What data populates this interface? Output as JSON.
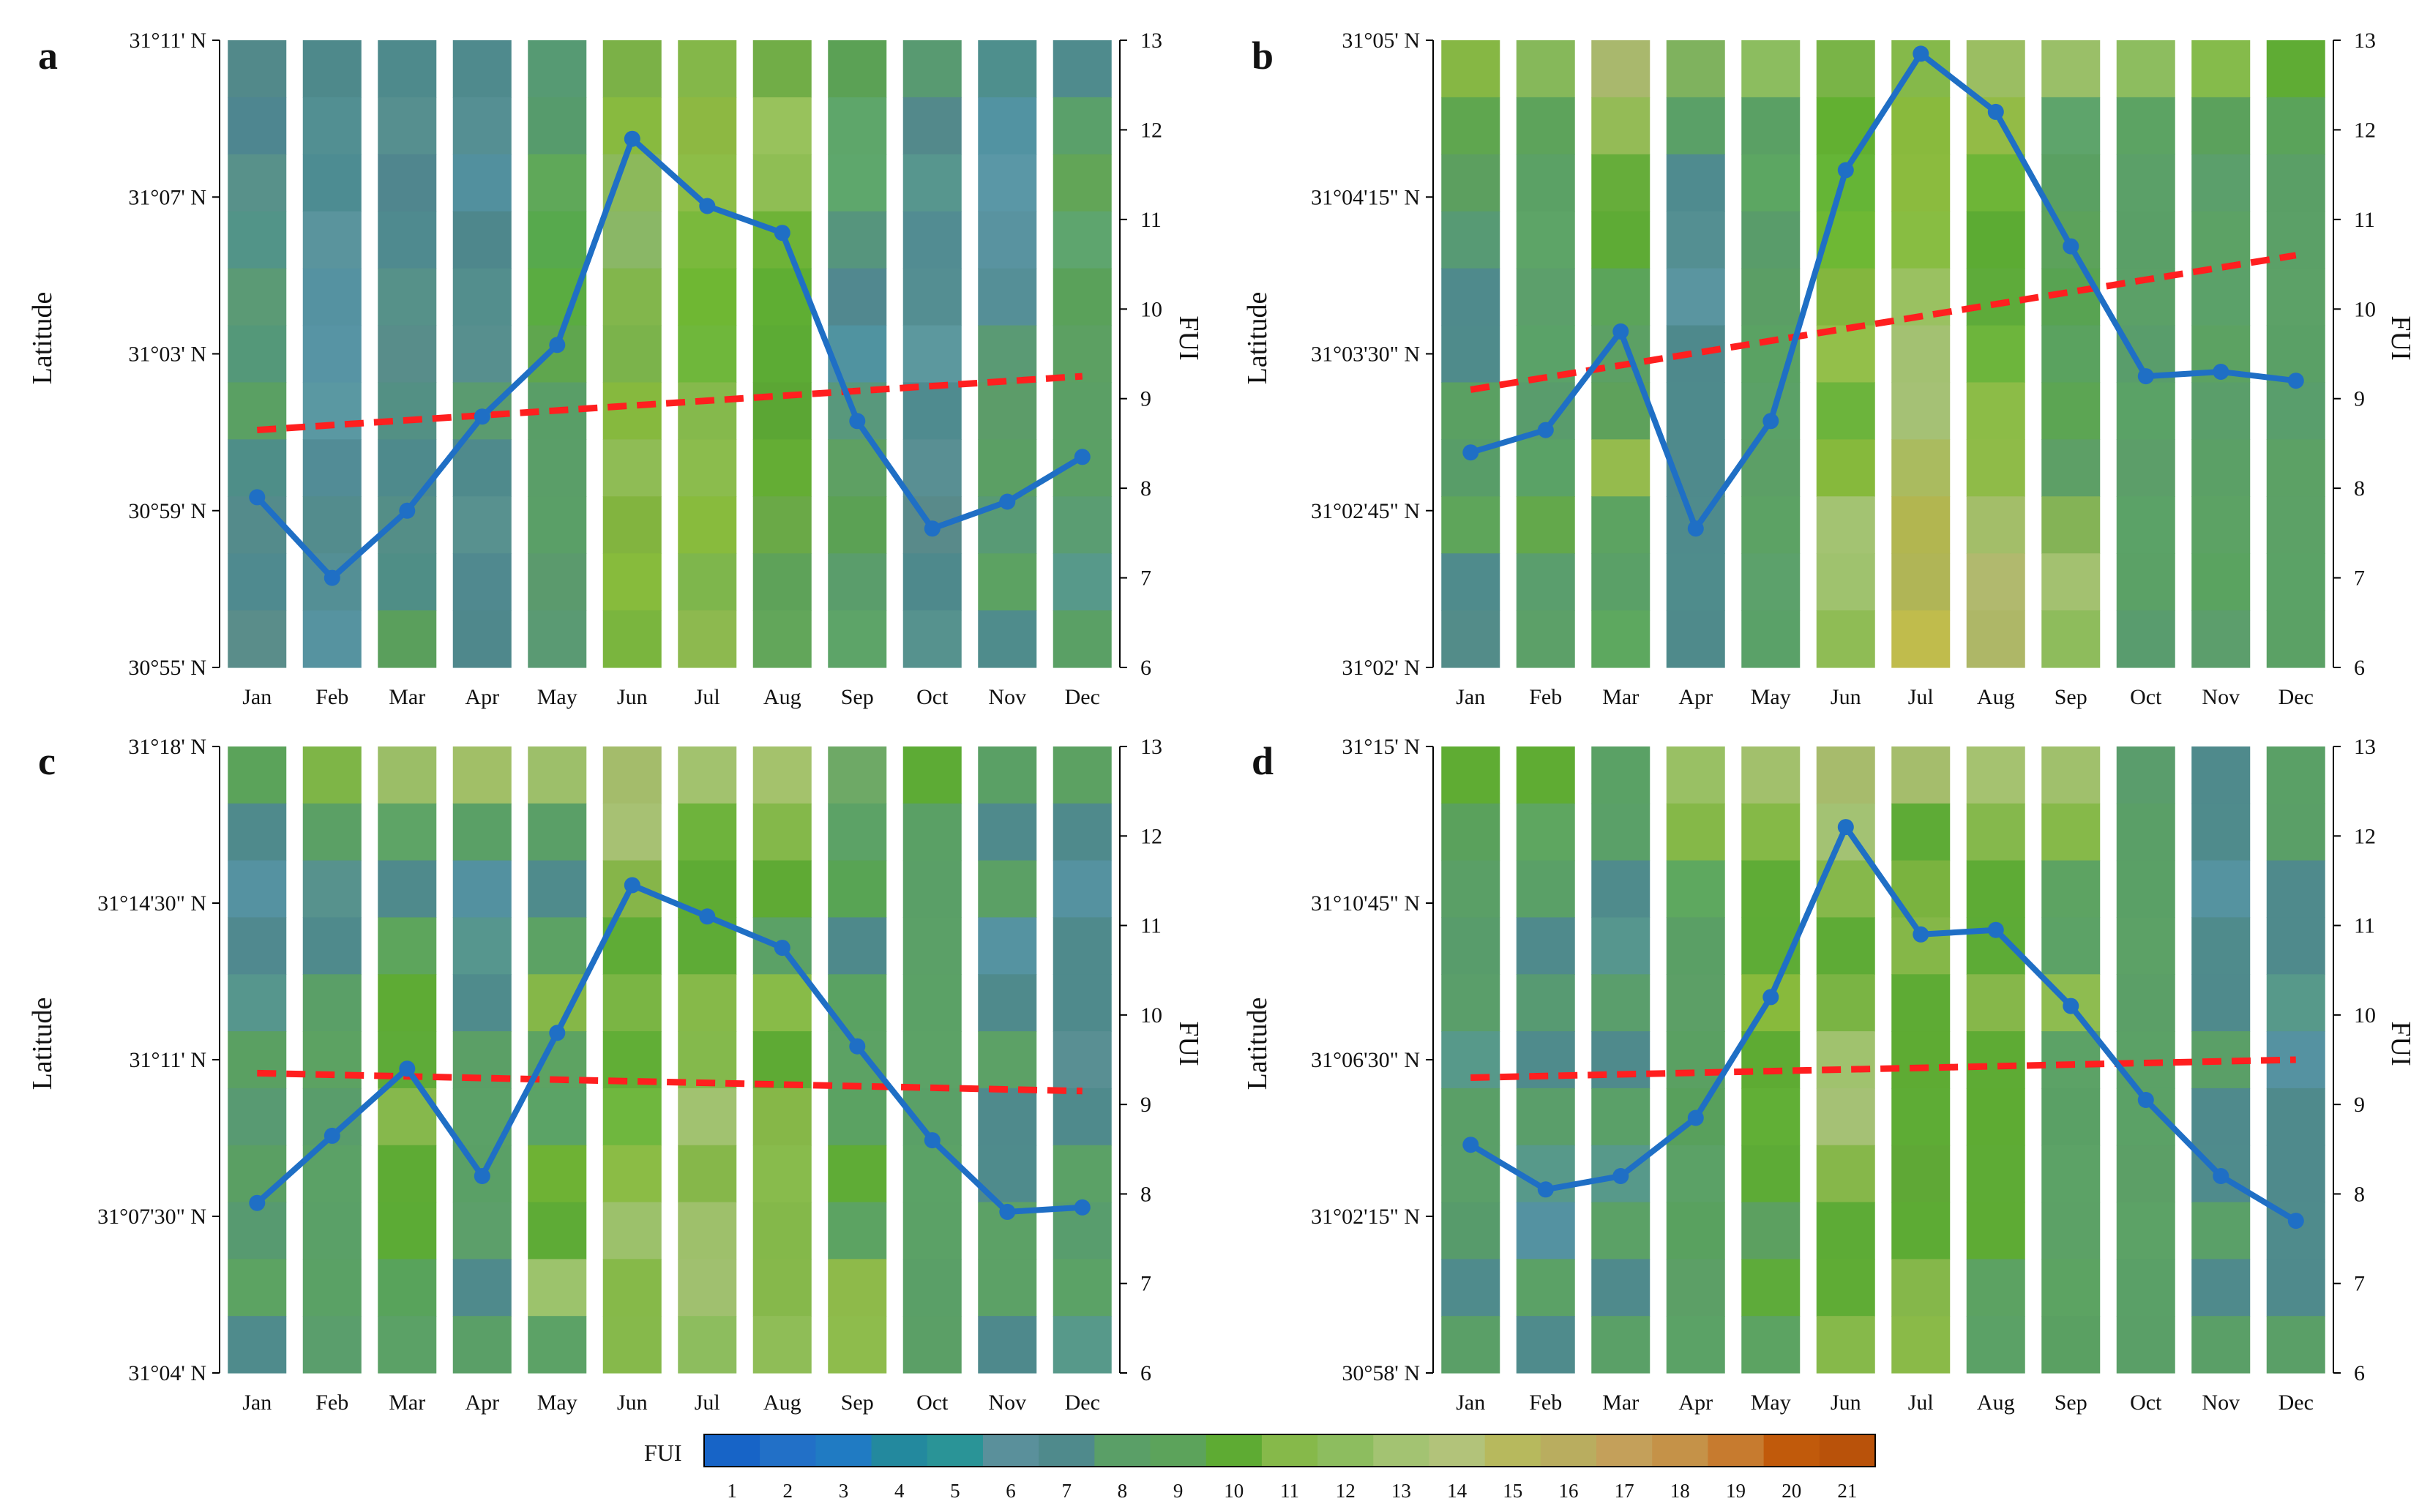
{
  "chart_data": {
    "panels": [
      {
        "type": "heatmap+line",
        "panel_label": "a",
        "ylabel_left": "Latitude",
        "ylabel_right": "FUI",
        "lat_ticks": [
          "31°11' N",
          "31°07' N",
          "31°03' N",
          "30°59' N",
          "30°55' N"
        ],
        "fui_ticks": [
          "13",
          "12",
          "11",
          "10",
          "9",
          "8",
          "7",
          "6"
        ],
        "ylim_right": [
          6,
          13
        ],
        "categories": [
          "Jan",
          "Feb",
          "Mar",
          "Apr",
          "May",
          "Jun",
          "Jul",
          "Aug",
          "Sep",
          "Oct",
          "Nov",
          "Dec"
        ],
        "line_values": [
          7.9,
          7.0,
          7.75,
          8.8,
          9.6,
          11.9,
          11.15,
          10.85,
          8.75,
          7.55,
          7.85,
          8.35
        ],
        "trend_start": 8.65,
        "trend_end": 9.25,
        "column_colors": [
          [
            "#52898a",
            "#4e8690",
            "#58918a",
            "#529488",
            "#5b9a75",
            "#549879",
            "#5aa063",
            "#4e8e88",
            "#548b8b",
            "#4f8a8f",
            "#5a8d8a"
          ],
          [
            "#4e898b",
            "#528f92",
            "#4d8c92",
            "#5a949d",
            "#5592a1",
            "#5794a4",
            "#5a98a2",
            "#528c96",
            "#538c8d",
            "#548f95",
            "#5693a0"
          ],
          [
            "#4e8a8c",
            "#568f8f",
            "#50868e",
            "#4f8a8f",
            "#569189",
            "#588d8a",
            "#539084",
            "#4e8a8c",
            "#548e87",
            "#4f8e86",
            "#5a9f5c"
          ],
          [
            "#4f8a8d",
            "#558f93",
            "#52909e",
            "#4e878c",
            "#538e8d",
            "#578f8e",
            "#5a9b70",
            "#4f8a8c",
            "#58918f",
            "#50898f",
            "#4f888c"
          ],
          [
            "#569a73",
            "#569b6c",
            "#5fa859",
            "#57a94d",
            "#5aac41",
            "#5fa64e",
            "#599e67",
            "#5a9e68",
            "#5a9f67",
            "#5b9a6d",
            "#5a9a73"
          ],
          [
            "#7bb147",
            "#88ba3f",
            "#8cb95b",
            "#8ab766",
            "#82b64c",
            "#7bb34b",
            "#86b93e",
            "#8fbc55",
            "#82b43f",
            "#87bb3c",
            "#7ab53e"
          ],
          [
            "#84b749",
            "#8db842",
            "#8dbd47",
            "#7ab93c",
            "#6fb733",
            "#6fb73b",
            "#85b94c",
            "#8bbc4d",
            "#88bb3d",
            "#7eb64c",
            "#8db94f"
          ],
          [
            "#71ad47",
            "#98c25c",
            "#8fbe54",
            "#6eb337",
            "#5fae33",
            "#5cab34",
            "#5ba634",
            "#64ad34",
            "#6aa947",
            "#5ea259",
            "#62a65a"
          ],
          [
            "#5ba155",
            "#5ea66a",
            "#5ea76c",
            "#56957d",
            "#51888f",
            "#5093a0",
            "#58987c",
            "#5ea063",
            "#5ba154",
            "#5a9d6b",
            "#5da468"
          ],
          [
            "#589a71",
            "#53898b",
            "#57968e",
            "#528c92",
            "#548e92",
            "#5c989e",
            "#4f8b8f",
            "#598f93",
            "#598a8a",
            "#4e898c",
            "#56928e"
          ],
          [
            "#4e8f8d",
            "#5293a2",
            "#5a97a6",
            "#5993a0",
            "#558f97",
            "#5a9a74",
            "#5c9c69",
            "#5b9f64",
            "#589a75",
            "#5ca262",
            "#4f8c8c"
          ],
          [
            "#4f8b8d",
            "#5aa06a",
            "#62a557",
            "#5ea56e",
            "#5aa15a",
            "#5ca062",
            "#5b9f65",
            "#5ba065",
            "#5a9d72",
            "#57998a",
            "#5aa065"
          ]
        ]
      },
      {
        "type": "heatmap+line",
        "panel_label": "b",
        "ylabel_left": "Latitude",
        "ylabel_right": "FUI",
        "lat_ticks": [
          "31°05' N",
          "31°04'15\" N",
          "31°03'30\" N",
          "31°02'45\" N",
          "31°02' N"
        ],
        "fui_ticks": [
          "13",
          "12",
          "11",
          "10",
          "9",
          "8",
          "7",
          "6"
        ],
        "ylim_right": [
          6,
          13
        ],
        "categories": [
          "Jan",
          "Feb",
          "Mar",
          "Apr",
          "May",
          "Jun",
          "Jul",
          "Aug",
          "Sep",
          "Oct",
          "Nov",
          "Dec"
        ],
        "line_values": [
          8.4,
          8.65,
          9.75,
          7.55,
          8.75,
          11.55,
          12.85,
          12.2,
          10.7,
          9.25,
          9.3,
          9.2
        ],
        "trend_start": 9.1,
        "trend_end": 10.6,
        "column_colors": [
          [
            "#86b744",
            "#5fa64f",
            "#5c9f5f",
            "#579a74",
            "#4f8a8c",
            "#4f8b8b",
            "#5aa062",
            "#589d68",
            "#5ea55a",
            "#4f8b8c",
            "#538c89"
          ],
          [
            "#86b85a",
            "#5da35b",
            "#5ba165",
            "#5da467",
            "#5c9f6b",
            "#5aa268",
            "#599c6c",
            "#5aa266",
            "#63a84b",
            "#5a9e6d",
            "#5ca068"
          ],
          [
            "#a9b86d",
            "#94bb56",
            "#66ad3a",
            "#5eab35",
            "#5ba45a",
            "#5ca064",
            "#5ea15b",
            "#95bb4d",
            "#5ca361",
            "#5aa067",
            "#5da85f"
          ],
          [
            "#7fb25e",
            "#5aa067",
            "#4f8b8f",
            "#548f92",
            "#5a95a0",
            "#4e898c",
            "#4e8a8c",
            "#4f8a8c",
            "#4f8b8c",
            "#4f8c8c",
            "#4f8a8b"
          ],
          [
            "#8cbd5f",
            "#5aa064",
            "#5ca662",
            "#599c6a",
            "#5b9e65",
            "#5aa263",
            "#5ba167",
            "#5c9f66",
            "#5ca264",
            "#5ca16b",
            "#5aa168"
          ],
          [
            "#79b447",
            "#62b031",
            "#65b536",
            "#6eb834",
            "#83b63e",
            "#93bf4a",
            "#6cb43c",
            "#86b93c",
            "#a3c372",
            "#9fc26e",
            "#8fbc55"
          ],
          [
            "#85b94a",
            "#89ba3d",
            "#8bbb3e",
            "#88bd42",
            "#9ac161",
            "#a3c172",
            "#a5c175",
            "#aabb5f",
            "#b2b650",
            "#b0b556",
            "#c0bc4c"
          ],
          [
            "#9bbe62",
            "#93bb46",
            "#6eb537",
            "#5cab33",
            "#5eab3a",
            "#6db53c",
            "#8cbc47",
            "#8fbb48",
            "#a3be69",
            "#b1b96e",
            "#aeb767"
          ],
          [
            "#9abf68",
            "#5ea46b",
            "#5aa062",
            "#5ca25b",
            "#58a352",
            "#5aa25f",
            "#5ca553",
            "#5d9f66",
            "#84b356",
            "#a3c170",
            "#8ebc5c"
          ],
          [
            "#8dbd5f",
            "#5ca363",
            "#5ba068",
            "#5a9f67",
            "#5ba067",
            "#599d6b",
            "#5aa266",
            "#5c9e69",
            "#5ba267",
            "#5ba166",
            "#599c6e"
          ],
          [
            "#85bb4b",
            "#5ba15c",
            "#5b9f6b",
            "#5ca265",
            "#5ba169",
            "#5ca262",
            "#5a9e6a",
            "#5ba066",
            "#5ca264",
            "#5aa360",
            "#5c9e6c"
          ],
          [
            "#5fac34",
            "#5aa35a",
            "#5a9f66",
            "#5ba067",
            "#5ca167",
            "#5aa066",
            "#599e6c",
            "#5ca165",
            "#5ca166",
            "#5ba266",
            "#5ba165"
          ]
        ]
      },
      {
        "type": "heatmap+line",
        "panel_label": "c",
        "ylabel_left": "Latitude",
        "ylabel_right": "FUI",
        "lat_ticks": [
          "31°18' N",
          "31°14'30\" N",
          "31°11' N",
          "31°07'30\" N",
          "31°04' N"
        ],
        "fui_ticks": [
          "13",
          "12",
          "11",
          "10",
          "9",
          "8",
          "7",
          "6"
        ],
        "ylim_right": [
          6,
          13
        ],
        "categories": [
          "Jan",
          "Feb",
          "Mar",
          "Apr",
          "May",
          "Jun",
          "Jul",
          "Aug",
          "Sep",
          "Oct",
          "Nov",
          "Dec"
        ],
        "line_values": [
          7.9,
          8.65,
          9.4,
          8.2,
          9.8,
          11.45,
          11.1,
          10.75,
          9.65,
          8.6,
          7.8,
          7.85
        ],
        "trend_start": 9.35,
        "trend_end": 9.15,
        "column_colors": [
          [
            "#5ba35a",
            "#4f8a8c",
            "#5592a1",
            "#50898f",
            "#56968d",
            "#5aa062",
            "#589a72",
            "#5a9f63",
            "#579a70",
            "#5ca362",
            "#4f8b8c"
          ],
          [
            "#7eb547",
            "#5ba065",
            "#57928d",
            "#4f8a8c",
            "#5a9f67",
            "#5ca262",
            "#599d6b",
            "#5ba166",
            "#5aa067",
            "#5aa165",
            "#5a9e6c"
          ],
          [
            "#9bbe67",
            "#5ea466",
            "#4f8a8c",
            "#5da55c",
            "#5eab34",
            "#5eab38",
            "#86b84c",
            "#5eab34",
            "#5cab35",
            "#58a35b",
            "#5ba166"
          ],
          [
            "#a1bf67",
            "#5aa066",
            "#5391a0",
            "#56968e",
            "#4f8b8c",
            "#5b9f66",
            "#5ba167",
            "#5aa066",
            "#5c9f6a",
            "#4f8a8c",
            "#5a9f67"
          ],
          [
            "#9dbf6a",
            "#5a9f67",
            "#4f8b8c",
            "#5ca264",
            "#85b748",
            "#5da362",
            "#5ba366",
            "#6eb234",
            "#5eab36",
            "#9cc36c",
            "#5ca266"
          ],
          [
            "#a4bc6b",
            "#a7c173",
            "#86b549",
            "#5fac36",
            "#7ab544",
            "#61ae36",
            "#6fb73e",
            "#8bbc45",
            "#9cc16b",
            "#86b949",
            "#86b94b"
          ],
          [
            "#a2c26e",
            "#6eb33c",
            "#5eab34",
            "#5eab36",
            "#86b949",
            "#84b94c",
            "#a1c270",
            "#86b74a",
            "#9ec06b",
            "#a0c06f",
            "#8dbd5e"
          ],
          [
            "#a4c26c",
            "#84b84a",
            "#5faa34",
            "#5ba166",
            "#88bb48",
            "#5eaa34",
            "#86b748",
            "#88bb4c",
            "#84b84a",
            "#86b84b",
            "#8fbd57"
          ],
          [
            "#6ea966",
            "#5ca266",
            "#58a454",
            "#4e898b",
            "#5aa262",
            "#5ca264",
            "#5ba262",
            "#5fac36",
            "#5ca362",
            "#8eba4a",
            "#8ebc4c"
          ],
          [
            "#5dab35",
            "#5aa065",
            "#5a9f67",
            "#5ba067",
            "#5ba166",
            "#5ca266",
            "#5aa067",
            "#5ba266",
            "#5ba166",
            "#5a9f67",
            "#5b9f66"
          ],
          [
            "#5aa065",
            "#4f8a8c",
            "#5ba065",
            "#5593a1",
            "#4f8a8c",
            "#5ca166",
            "#4f8a8c",
            "#4f8b8c",
            "#5ca166",
            "#5ca166",
            "#4e898c"
          ],
          [
            "#5ca162",
            "#4f8a8c",
            "#5592a0",
            "#4f8a8c",
            "#4f8a8c",
            "#598f93",
            "#4f8a8c",
            "#5ba166",
            "#589d6d",
            "#5ba266",
            "#57998a"
          ]
        ]
      },
      {
        "type": "heatmap+line",
        "panel_label": "d",
        "ylabel_left": "Latitude",
        "ylabel_right": "FUI",
        "lat_ticks": [
          "31°15' N",
          "31°10'45\" N",
          "31°06'30\" N",
          "31°02'15\" N",
          "30°58' N"
        ],
        "fui_ticks": [
          "13",
          "12",
          "11",
          "10",
          "9",
          "8",
          "7",
          "6"
        ],
        "ylim_right": [
          6,
          13
        ],
        "categories": [
          "Jan",
          "Feb",
          "Mar",
          "Apr",
          "May",
          "Jun",
          "Jul",
          "Aug",
          "Sep",
          "Oct",
          "Nov",
          "Dec"
        ],
        "line_values": [
          8.55,
          8.05,
          8.2,
          8.85,
          10.2,
          12.1,
          10.9,
          10.95,
          10.1,
          9.05,
          8.2,
          7.7
        ],
        "trend_start": 9.3,
        "trend_end": 9.5,
        "column_colors": [
          [
            "#5fac33",
            "#5aa15c",
            "#5a9f66",
            "#589c6b",
            "#5a9e6a",
            "#57998a",
            "#5a9f67",
            "#5a9f68",
            "#579b6b",
            "#4f8b8c",
            "#5a9f67"
          ],
          [
            "#5fac33",
            "#5ea660",
            "#5aa067",
            "#4f8a8c",
            "#579a72",
            "#4f8b8c",
            "#5a9e6a",
            "#57998a",
            "#5492a1",
            "#5ba166",
            "#4f8b8c"
          ],
          [
            "#5aa165",
            "#5aa068",
            "#4f8b8c",
            "#56968e",
            "#5a9e6c",
            "#4f8a8c",
            "#5aa068",
            "#57998a",
            "#5ba166",
            "#4f8a8c",
            "#5aa067"
          ],
          [
            "#99c064",
            "#85b848",
            "#5ea85f",
            "#5a9f65",
            "#5c9f66",
            "#5aa062",
            "#58a05c",
            "#5ba166",
            "#59a15f",
            "#5c9f66",
            "#5ba266"
          ],
          [
            "#a2c06c",
            "#85b947",
            "#5fac36",
            "#5eac36",
            "#88ba3c",
            "#5eab33",
            "#61af36",
            "#5dab36",
            "#5ca060",
            "#5eab3a",
            "#5ca362"
          ],
          [
            "#a7bb6c",
            "#a3c273",
            "#86b84b",
            "#5eab36",
            "#7ab444",
            "#a0c26e",
            "#a5c175",
            "#86b74a",
            "#5dab36",
            "#5fac35",
            "#86b94a"
          ],
          [
            "#a5bd6c",
            "#5eab36",
            "#7ab33f",
            "#85b748",
            "#5eab34",
            "#5eab33",
            "#5eac35",
            "#5fa836",
            "#5dab34",
            "#85b74a",
            "#8aba48"
          ],
          [
            "#a5c270",
            "#85b84c",
            "#5eab35",
            "#5dab36",
            "#86b74a",
            "#5eab34",
            "#5eab33",
            "#5eab35",
            "#5eab34",
            "#5ca262",
            "#5ba166"
          ],
          [
            "#a0c06c",
            "#86b949",
            "#5da362",
            "#5ca266",
            "#8ebc50",
            "#5ca266",
            "#5aa065",
            "#5ca266",
            "#5ca166",
            "#5ca362",
            "#5aa062"
          ],
          [
            "#5a9d6c",
            "#5a9f67",
            "#5aa066",
            "#5ca166",
            "#5b9f67",
            "#5ba166",
            "#5ba166",
            "#5c9f66",
            "#5ca266",
            "#5aa067",
            "#5a9f67"
          ],
          [
            "#4f8a8c",
            "#4f8b8c",
            "#5593a0",
            "#4f8b8c",
            "#4f8a8c",
            "#5a9f67",
            "#4f8a8c",
            "#4f8b8c",
            "#5aa068",
            "#4f8a8c",
            "#5a9f67"
          ],
          [
            "#5aa066",
            "#5a9f67",
            "#4f8a8c",
            "#4f8a8c",
            "#57998a",
            "#5592a1",
            "#4f8a8c",
            "#4f8a8c",
            "#4f8b8c",
            "#4f8a8c",
            "#5a9f67"
          ]
        ]
      }
    ],
    "colorbar": {
      "label": "FUI",
      "ticks": [
        "1",
        "2",
        "3",
        "4",
        "5",
        "6",
        "7",
        "8",
        "9",
        "10",
        "11",
        "12",
        "13",
        "14",
        "15",
        "16",
        "17",
        "18",
        "19",
        "20",
        "21"
      ],
      "colors": [
        "#1764c7",
        "#2270c7",
        "#207bc3",
        "#23899e",
        "#2a9497",
        "#5a909b",
        "#4f8a8c",
        "#5a9f67",
        "#5ca35b",
        "#5eab33",
        "#86b94a",
        "#8dbd5f",
        "#a3c372",
        "#b2c37a",
        "#b7b95d",
        "#b9ad5f",
        "#c4a05a",
        "#c59248",
        "#c77b2f",
        "#c15a0b",
        "#b9520a"
      ]
    },
    "colors": {
      "line": "#1f6fc5",
      "trend": "#ff1f1f"
    }
  }
}
